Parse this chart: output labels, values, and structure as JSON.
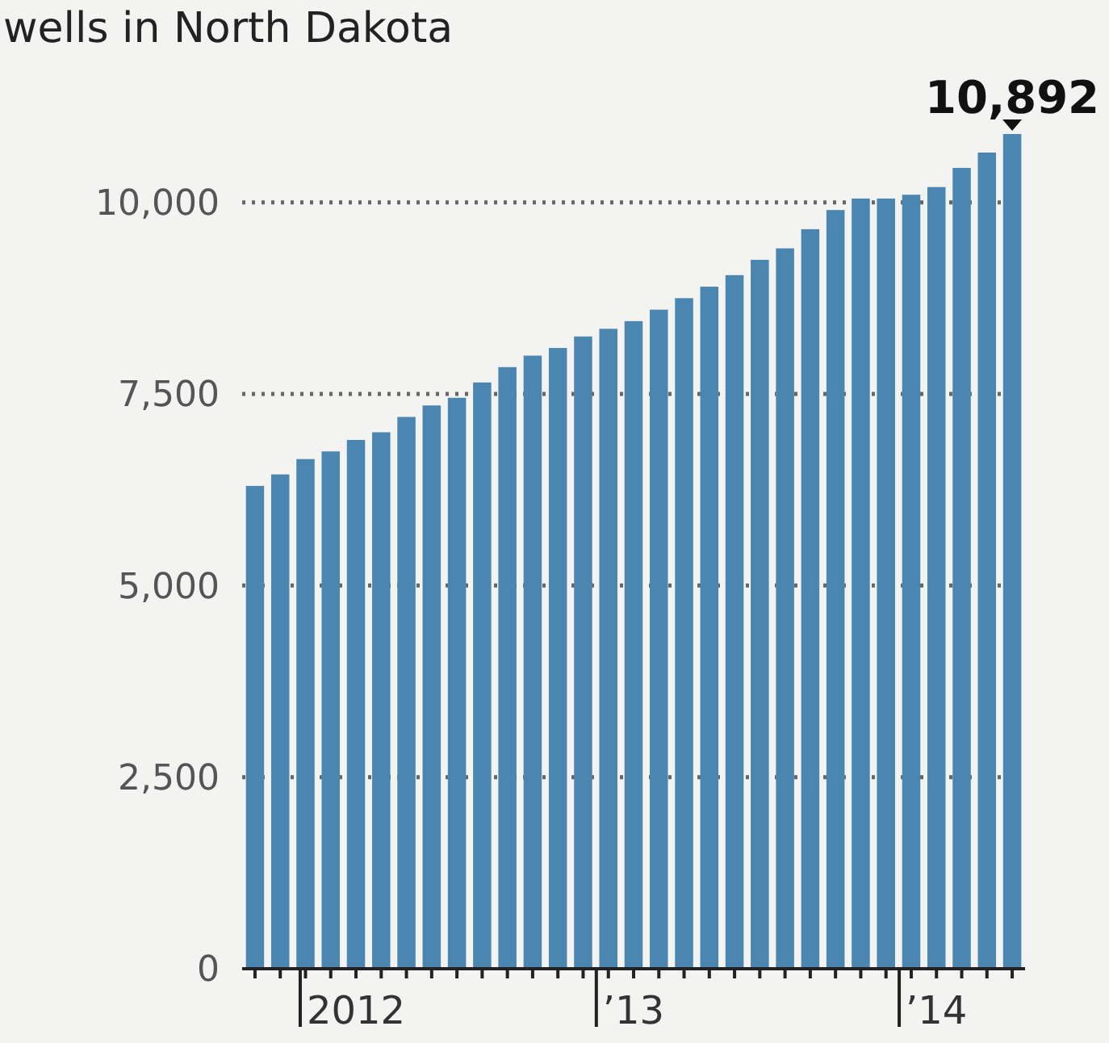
{
  "chart_data": {
    "type": "bar",
    "title": "wells in North Dakota",
    "categories": [
      null,
      null,
      null,
      null,
      "2012",
      null,
      null,
      null,
      null,
      null,
      null,
      null,
      null,
      null,
      null,
      "’13",
      null,
      null,
      null,
      null,
      null,
      null,
      null,
      null,
      null,
      null,
      null,
      "’14",
      null,
      null,
      null
    ],
    "values": [
      6300,
      6450,
      6650,
      6750,
      6900,
      7000,
      7200,
      7350,
      7450,
      7650,
      7850,
      8000,
      8100,
      8250,
      8350,
      8450,
      8600,
      8750,
      8900,
      9050,
      9250,
      9400,
      9650,
      9900,
      10050,
      10050,
      10100,
      10200,
      10450,
      10650,
      10892
    ],
    "value_labels": [
      null,
      null,
      null,
      null,
      null,
      null,
      null,
      null,
      null,
      null,
      null,
      null,
      null,
      null,
      null,
      null,
      null,
      null,
      null,
      null,
      null,
      null,
      null,
      null,
      null,
      null,
      null,
      null,
      null,
      null,
      "10,892"
    ],
    "color": "#4a86b0",
    "ylim": [
      0,
      10892
    ],
    "yticks": [
      0,
      {
        "value": 2500,
        "label": "2,500"
      },
      {
        "value": 5000,
        "label": "5,000"
      },
      {
        "value": 7500,
        "label": "7,500"
      },
      {
        "value": 10000,
        "label": "10,000"
      }
    ],
    "grid": "y",
    "line_style": "dotted"
  }
}
